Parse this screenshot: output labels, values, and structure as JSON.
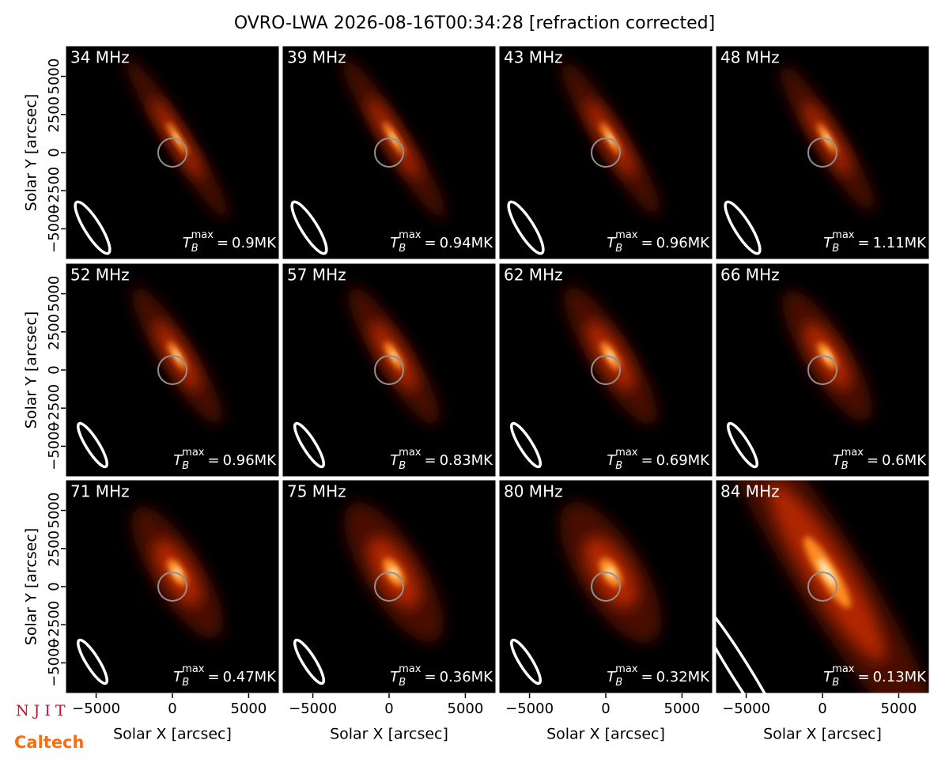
{
  "chart_data": {
    "type": "image-grid",
    "title": "OVRO-LWA 2026-08-16T00:34:28 [refraction corrected]",
    "xlabel": "Solar X [arcsec]",
    "ylabel": "Solar Y [arcsec]",
    "xlim": [
      -7000,
      7000
    ],
    "ylim": [
      -7000,
      7000
    ],
    "xticks": [
      {
        "value": -5000,
        "label": "−5000"
      },
      0,
      5000
    ],
    "yticks": [
      {
        "value": -5000,
        "label": "−5000"
      },
      {
        "value": -2500,
        "label": "−2500"
      },
      0,
      2500,
      5000
    ],
    "tb_symbol": {
      "base": "T",
      "sub": "B",
      "sup": "max",
      "equals": "="
    },
    "panels": [
      {
        "title": "34 MHz",
        "tb_max": {
          "value": 0.9,
          "label": "0.9MK"
        }
      },
      {
        "title": "39 MHz",
        "tb_max": {
          "value": 0.94,
          "label": "0.94MK"
        }
      },
      {
        "title": "43 MHz",
        "tb_max": {
          "value": 0.96,
          "label": "0.96MK"
        }
      },
      {
        "title": "48 MHz",
        "tb_max": {
          "value": 1.11,
          "label": "1.11MK"
        }
      },
      {
        "title": "52 MHz",
        "tb_max": {
          "value": 0.96,
          "label": "0.96MK"
        }
      },
      {
        "title": "57 MHz",
        "tb_max": {
          "value": 0.83,
          "label": "0.83MK"
        }
      },
      {
        "title": "62 MHz",
        "tb_max": {
          "value": 0.69,
          "label": "0.69MK"
        }
      },
      {
        "title": "66 MHz",
        "tb_max": {
          "value": 0.6,
          "label": "0.6MK"
        }
      },
      {
        "title": "71 MHz",
        "tb_max": {
          "value": 0.47,
          "label": "0.47MK"
        }
      },
      {
        "title": "75 MHz",
        "tb_max": {
          "value": 0.36,
          "label": "0.36MK"
        }
      },
      {
        "title": "80 MHz",
        "tb_max": {
          "value": 0.32,
          "label": "0.32MK"
        }
      },
      {
        "title": "84 MHz",
        "tb_max": {
          "value": 0.13,
          "label": "0.13MK"
        }
      }
    ]
  },
  "logos": {
    "top": "N J I T",
    "bottom": "Caltech"
  }
}
